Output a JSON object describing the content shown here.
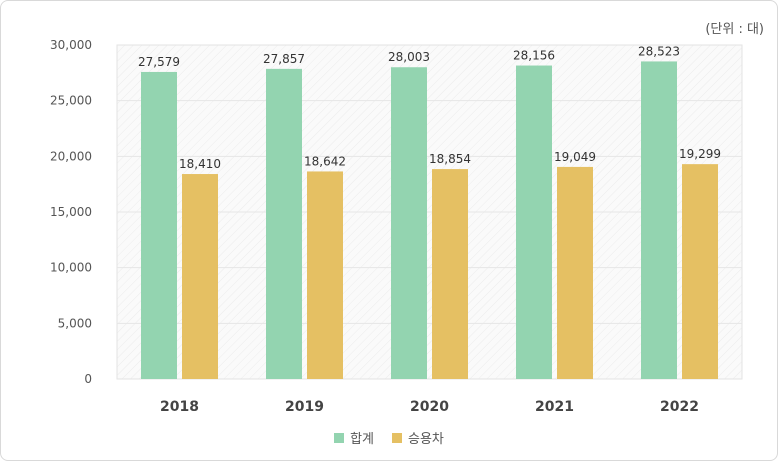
{
  "chart_data": {
    "type": "bar",
    "title": "",
    "unit_label": "(단위 : 대)",
    "categories": [
      "2018",
      "2019",
      "2020",
      "2021",
      "2022"
    ],
    "series": [
      {
        "name": "합계",
        "values": [
          27579,
          27857,
          28003,
          28156,
          28523
        ],
        "labels": [
          "27,579",
          "27,857",
          "28,003",
          "28,156",
          "28,523"
        ],
        "color": "#93d4b0"
      },
      {
        "name": "승용차",
        "values": [
          18410,
          18642,
          18854,
          19049,
          19299
        ],
        "labels": [
          "18,410",
          "18,642",
          "18,854",
          "19,049",
          "19,299"
        ],
        "color": "#e5c063"
      }
    ],
    "ylim": [
      0,
      30000
    ],
    "yticks": [
      0,
      5000,
      10000,
      15000,
      20000,
      25000,
      30000
    ],
    "ytick_labels": [
      "0",
      "5,000",
      "10,000",
      "15,000",
      "20,000",
      "25,000",
      "30,000"
    ],
    "grid": true,
    "legend_position": "bottom-center",
    "xlabel": "",
    "ylabel": ""
  }
}
